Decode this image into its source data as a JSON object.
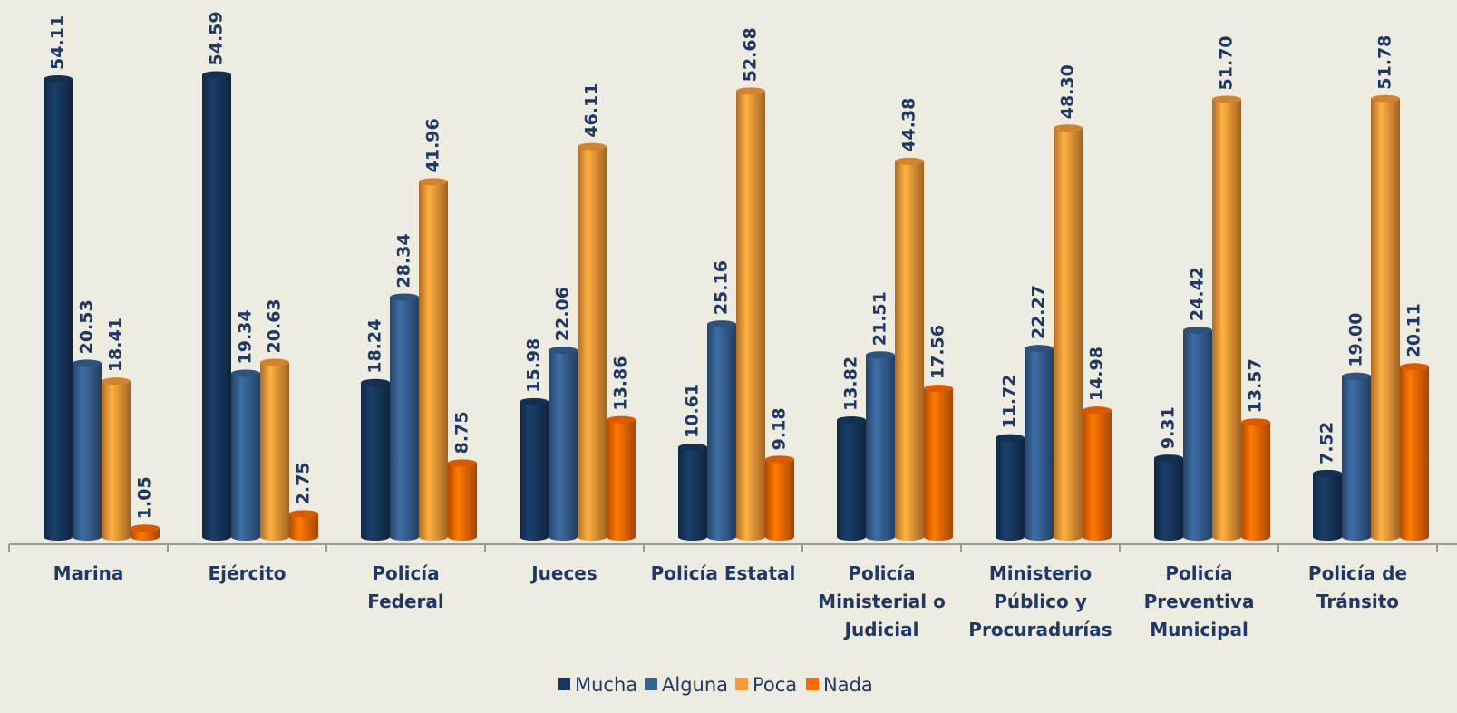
{
  "chart_data": {
    "type": "bar",
    "categories": [
      "Marina",
      "Ejército",
      "Policía Federal",
      "Jueces",
      "Policía Estatal",
      "Policía Ministerial o Judicial",
      "Ministerio Público y Procuradurías",
      "Policía Preventiva Municipal",
      "Policía de Tránsito"
    ],
    "series": [
      {
        "name": "Mucha",
        "color": "#17375e",
        "values": [
          54.11,
          54.59,
          18.24,
          15.98,
          10.61,
          13.82,
          11.72,
          9.31,
          7.52
        ],
        "value_labels": [
          "54.11",
          "54.59",
          "18.24",
          "15.98",
          "10.61",
          "13.82",
          "11.72",
          "9.31",
          "7.52"
        ]
      },
      {
        "name": "Alguna",
        "color": "#366092",
        "values": [
          20.53,
          19.34,
          28.34,
          22.06,
          25.16,
          21.51,
          22.27,
          24.42,
          19.0
        ],
        "value_labels": [
          "20.53",
          "19.34",
          "28.34",
          "22.06",
          "25.16",
          "21.51",
          "22.27",
          "24.42",
          "19.00"
        ]
      },
      {
        "name": "Poca",
        "color": "#f79a38",
        "values": [
          18.41,
          20.63,
          41.96,
          46.11,
          52.68,
          44.38,
          48.3,
          51.7,
          51.78
        ],
        "value_labels": [
          "18.41",
          "20.63",
          "41.96",
          "46.11",
          "52.68",
          "44.38",
          "48.30",
          "51.70",
          "51.78"
        ]
      },
      {
        "name": "Nada",
        "color": "#ff6a00",
        "values": [
          1.05,
          2.75,
          8.75,
          13.86,
          9.18,
          17.56,
          14.98,
          13.57,
          20.11
        ],
        "value_labels": [
          "1.05",
          "2.75",
          "8.75",
          "13.86",
          "9.18",
          "17.56",
          "14.98",
          "13.57",
          "20.11"
        ]
      }
    ],
    "ylim": [
      0,
      60
    ],
    "legend": "bottom"
  }
}
